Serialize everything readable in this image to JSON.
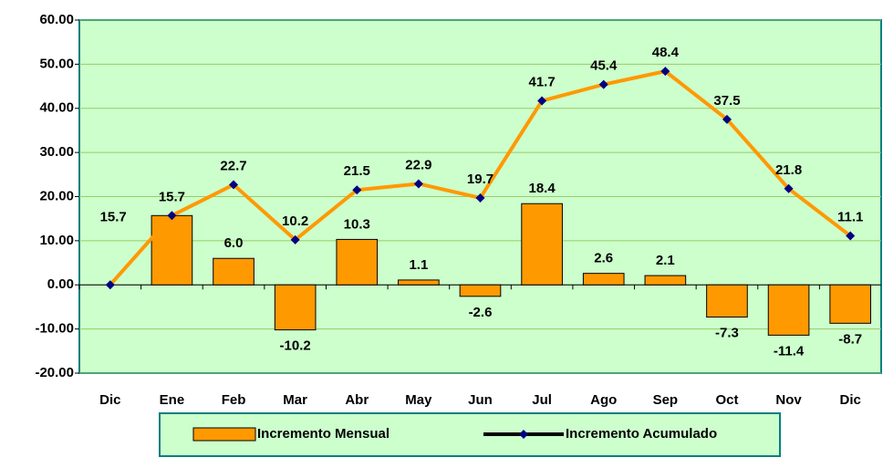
{
  "chart_data": {
    "type": "bar-line",
    "categories": [
      "Dic",
      "Ene",
      "Feb",
      "Mar",
      "Abr",
      "May",
      "Jun",
      "Jul",
      "Ago",
      "Sep",
      "Oct",
      "Nov",
      "Dic"
    ],
    "series": [
      {
        "name": "Incremento Mensual",
        "type": "bar",
        "color": "#ff9900",
        "values": [
          null,
          15.7,
          6.0,
          -10.2,
          10.3,
          1.1,
          -2.6,
          18.4,
          2.6,
          2.1,
          -7.3,
          -11.4,
          -8.7
        ],
        "value_labels": [
          null,
          "15.7",
          "6.0",
          "-10.2",
          "10.3",
          "1.1",
          "-2.6",
          "18.4",
          "2.6",
          "2.1",
          "-7.3",
          "-11.4",
          "-8.7"
        ]
      },
      {
        "name": "Incremento Acumulado",
        "type": "line",
        "color": "#ff9900",
        "marker_color": "#000080",
        "values": [
          0,
          15.7,
          22.7,
          10.2,
          21.5,
          22.9,
          19.7,
          41.7,
          45.4,
          48.4,
          37.5,
          21.8,
          11.1
        ],
        "value_labels": [
          null,
          "15.7",
          "22.7",
          "10.2",
          "21.5",
          "22.9",
          "19.7",
          "41.7",
          "45.4",
          "48.4",
          "37.5",
          "21.8",
          "11.1"
        ]
      }
    ],
    "ylim": [
      -20,
      60
    ],
    "yticks": [
      {
        "value": -20,
        "label": "-20.00"
      },
      {
        "value": -10,
        "label": "-10.00"
      },
      {
        "value": 0,
        "label": "0.00"
      },
      {
        "value": 10,
        "label": "10.00"
      },
      {
        "value": 20,
        "label": "20.00"
      },
      {
        "value": 30,
        "label": "30.00"
      },
      {
        "value": 40,
        "label": "40.00"
      },
      {
        "value": 50,
        "label": "50.00"
      },
      {
        "value": 60,
        "label": "60.00"
      }
    ],
    "grid": true
  }
}
